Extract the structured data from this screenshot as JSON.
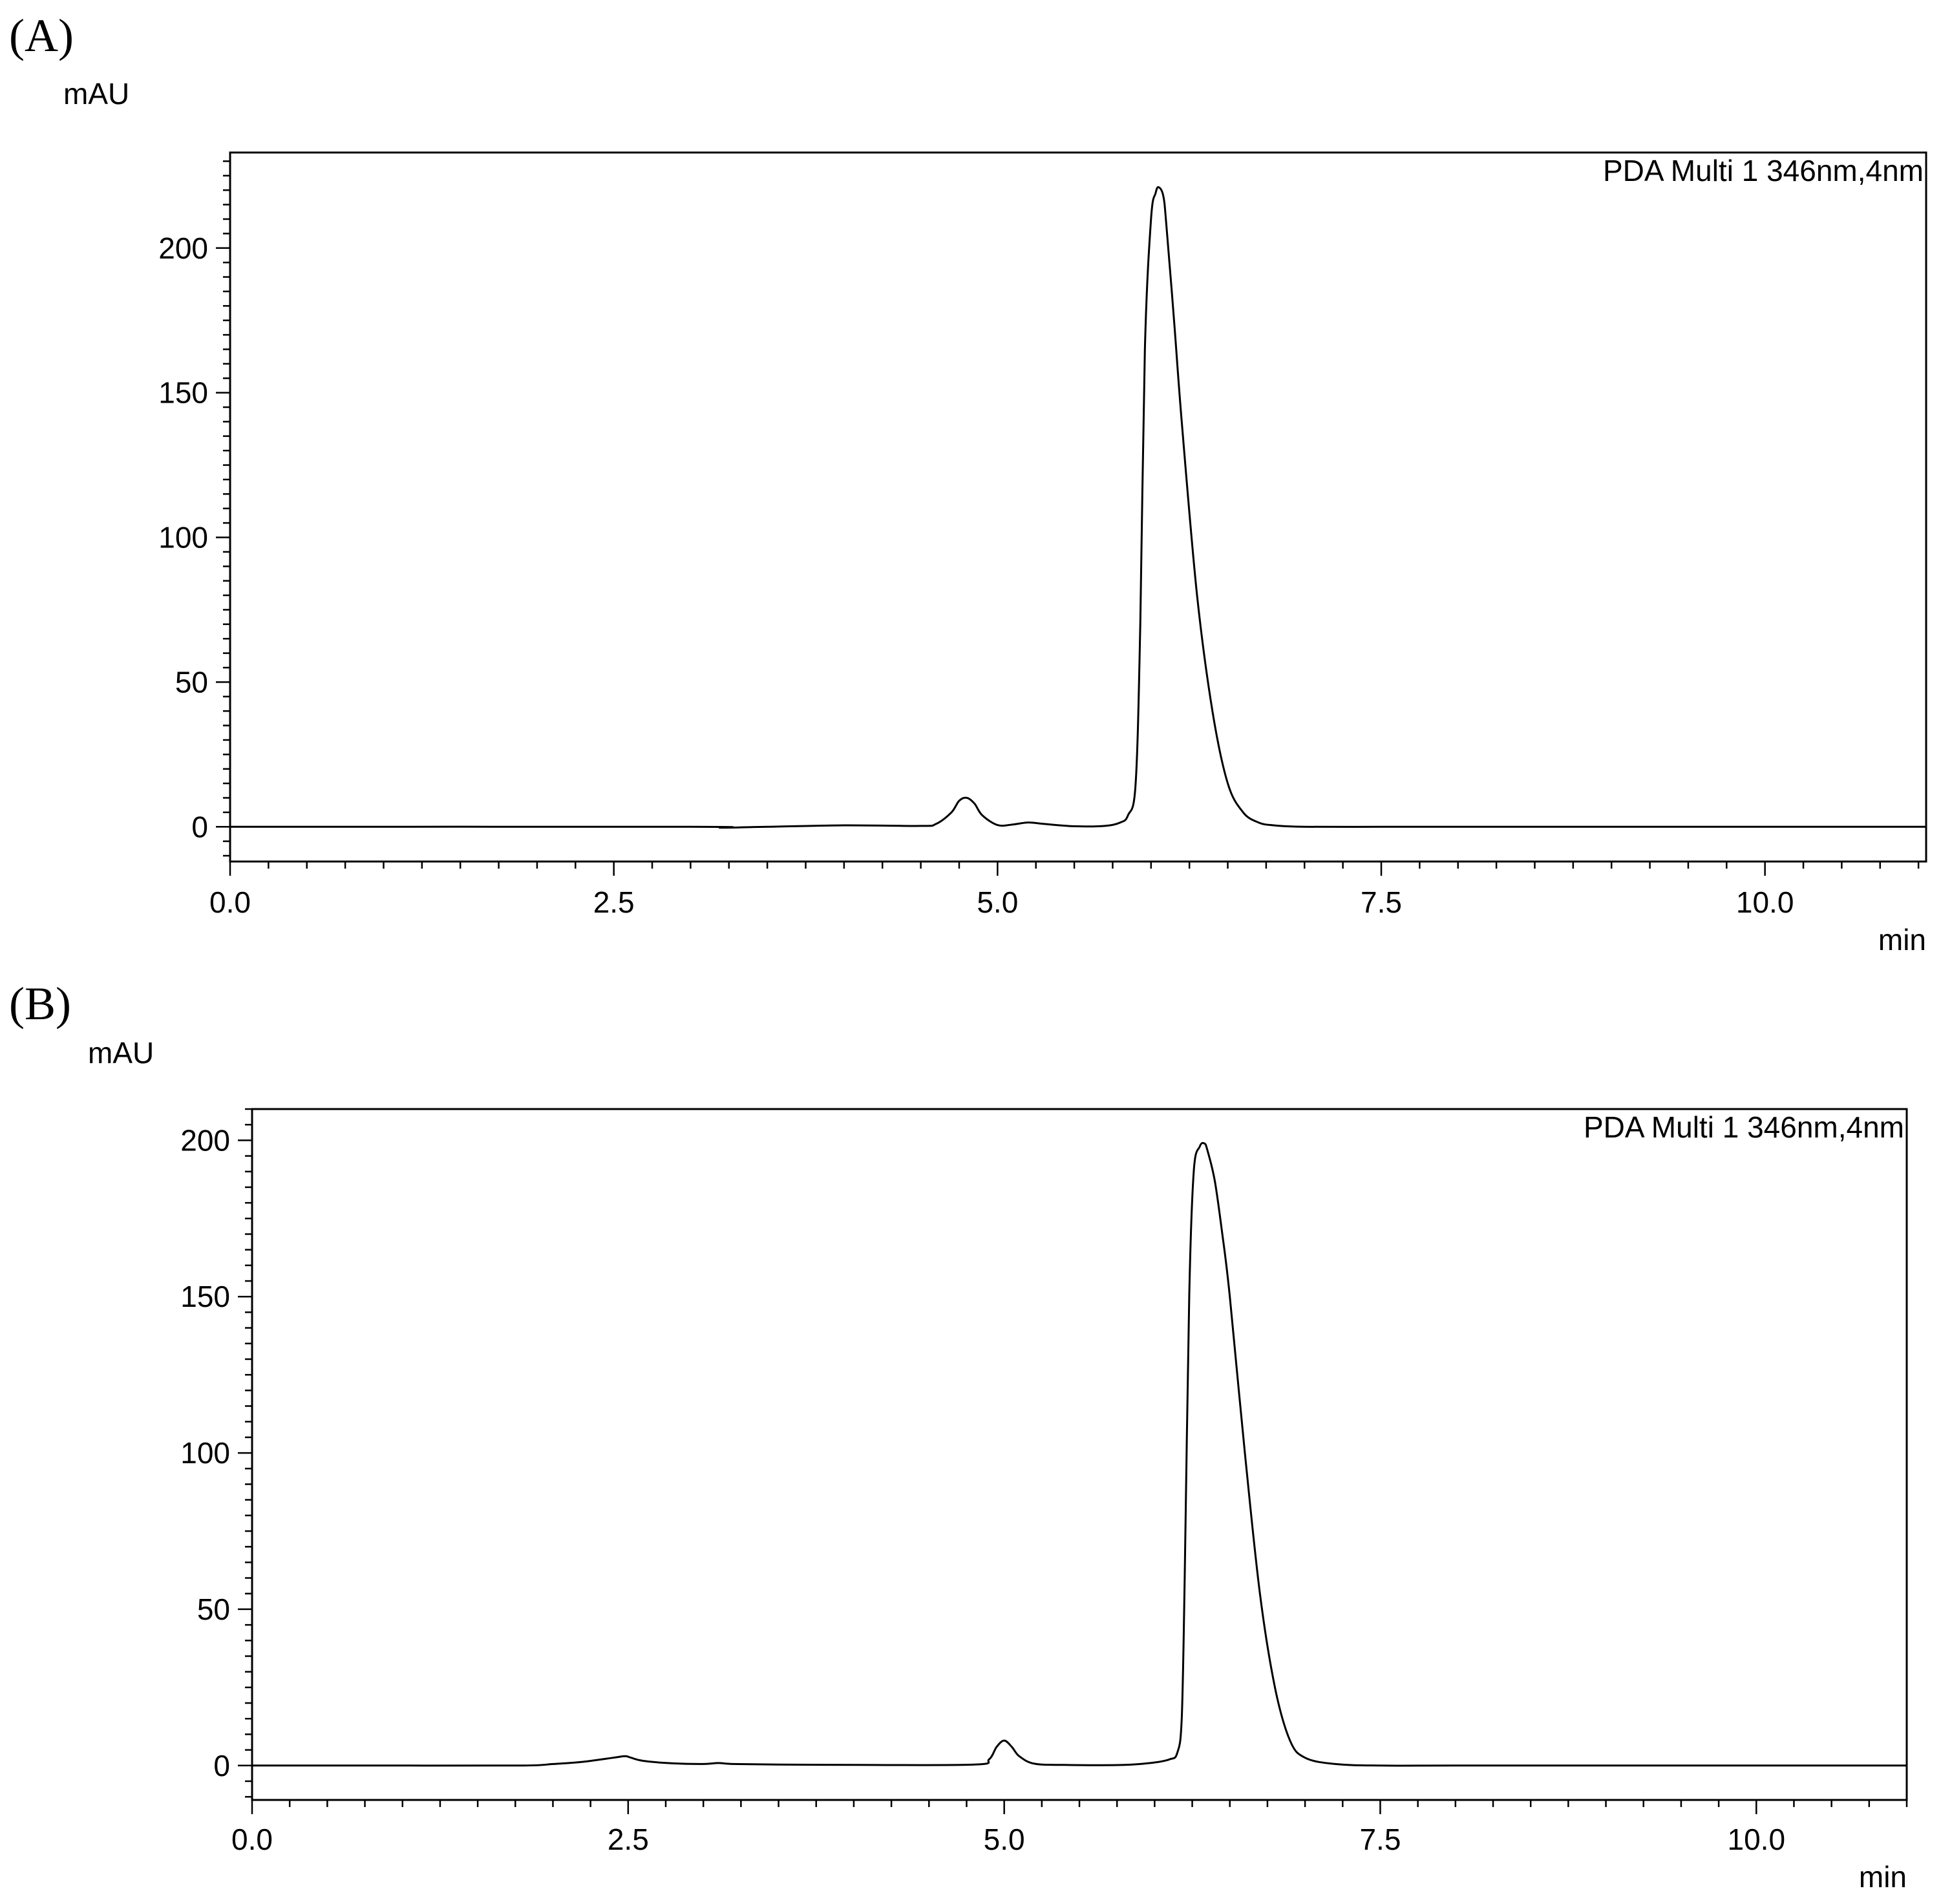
{
  "chart_data": [
    {
      "panel_label": "(A)",
      "type": "line",
      "ylabel": "mAU",
      "xlabel": "min",
      "legend": "PDA Multi 1 346nm,4nm",
      "legend_position": "top-right",
      "xlim": [
        0,
        11.05
      ],
      "ylim": [
        -12,
        233
      ],
      "xticks": [
        "0.0",
        "2.5",
        "5.0",
        "7.5",
        "10.0"
      ],
      "yticks": [
        "0",
        "50",
        "100",
        "150",
        "200"
      ],
      "grid": false,
      "series": [
        {
          "x": [
            0,
            3.0,
            3.2,
            3.5,
            4.0,
            4.5,
            4.6,
            4.7,
            4.75,
            4.8,
            4.85,
            4.9,
            5.0,
            5.1,
            5.2,
            5.3,
            5.5,
            5.7,
            5.8,
            5.85,
            5.9,
            5.93,
            5.96,
            6.0,
            6.03,
            6.05,
            6.08,
            6.1,
            6.15,
            6.2,
            6.3,
            6.4,
            6.5,
            6.6,
            6.7,
            6.8,
            7.0,
            7.5,
            8.0,
            9.0,
            10.0,
            11.05
          ],
          "y": [
            0,
            0,
            -0.3,
            0,
            0.5,
            0.3,
            1.0,
            5.0,
            9.0,
            10.0,
            8.0,
            4.0,
            0.6,
            0.8,
            1.5,
            1.0,
            0.2,
            0.3,
            1.5,
            4.0,
            15.0,
            70.0,
            165.0,
            210.0,
            219.0,
            221.0,
            218.0,
            208.0,
            175.0,
            140.0,
            80.0,
            40.0,
            15.0,
            5.0,
            1.5,
            0.5,
            0,
            0,
            0,
            0,
            0,
            0
          ]
        }
      ]
    },
    {
      "panel_label": "(B)",
      "type": "line",
      "ylabel": "mAU",
      "xlabel": "min",
      "legend": "PDA Multi 1 346nm,4nm",
      "legend_position": "top-right",
      "xlim": [
        0,
        11.0
      ],
      "ylim": [
        -11,
        210
      ],
      "xticks": [
        "0.0",
        "2.5",
        "5.0",
        "7.5",
        "10.0"
      ],
      "yticks": [
        "0",
        "50",
        "100",
        "150",
        "200"
      ],
      "grid": false,
      "series": [
        {
          "x": [
            0,
            1.0,
            1.8,
            2.0,
            2.2,
            2.4,
            2.48,
            2.52,
            2.6,
            2.8,
            3.0,
            3.1,
            3.2,
            3.5,
            4.0,
            4.8,
            4.9,
            4.95,
            5.0,
            5.05,
            5.1,
            5.2,
            5.4,
            5.8,
            6.0,
            6.1,
            6.15,
            6.18,
            6.2,
            6.23,
            6.26,
            6.3,
            6.33,
            6.35,
            6.4,
            6.45,
            6.5,
            6.6,
            6.7,
            6.8,
            6.9,
            7.0,
            7.2,
            7.5,
            8.0,
            9.0,
            10.0,
            11.0
          ],
          "y": [
            0,
            0,
            0,
            0.5,
            1.2,
            2.5,
            3.0,
            2.5,
            1.5,
            0.7,
            0.5,
            0.8,
            0.5,
            0.3,
            0.2,
            0.3,
            2.0,
            6.0,
            8.0,
            6.0,
            3.0,
            0.6,
            0.2,
            0.2,
            1.0,
            2.0,
            4.0,
            15.0,
            60.0,
            150.0,
            190.0,
            198.0,
            199.0,
            197.0,
            187.0,
            170.0,
            150.0,
            100.0,
            55.0,
            25.0,
            8.0,
            2.5,
            0.5,
            0,
            0,
            0,
            0,
            0
          ]
        }
      ]
    }
  ]
}
